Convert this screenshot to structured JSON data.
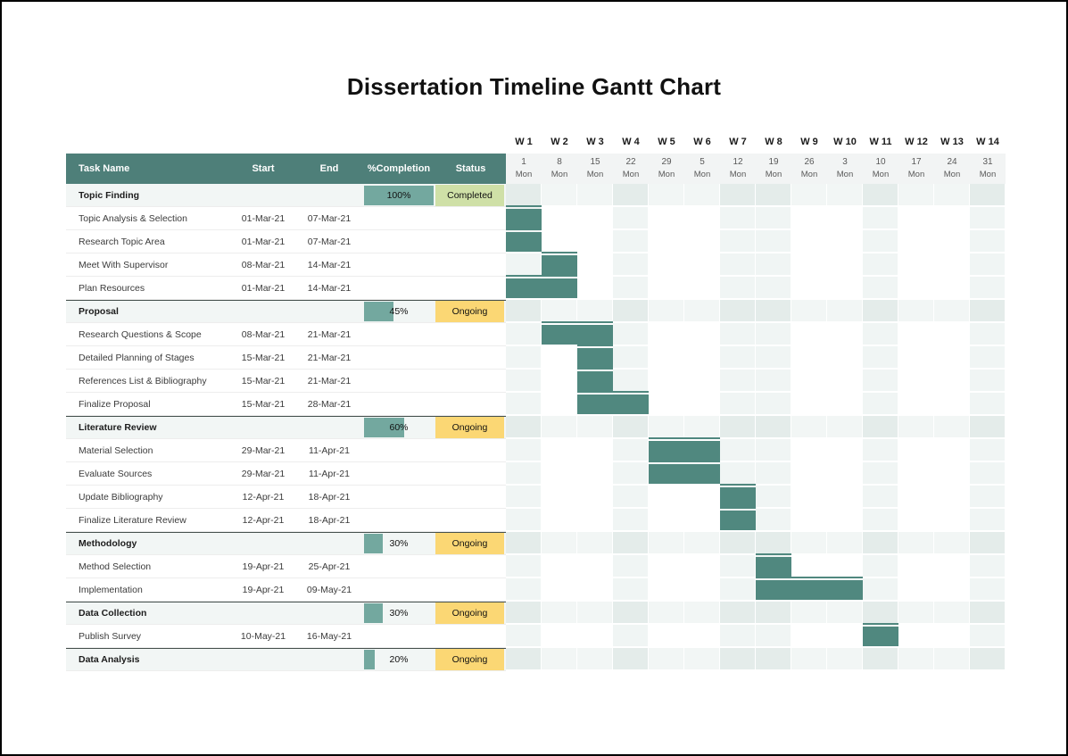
{
  "page_title": "Dissertation Timeline Gantt Chart",
  "colors": {
    "table_header_bg": "#4e7f79",
    "gantt_bar": "#50887f",
    "progress_fill": "#73a89f",
    "status": {
      "Completed": "#cfe0a7",
      "Ongoing": "#fbd774"
    },
    "week_shade": "rgba(79,135,127,0.085)",
    "group_row_bg": "rgba(79,135,127,0.075)",
    "date_band_bg": "#f2f4f4"
  },
  "table": {
    "headers": [
      "Task Name",
      "Start",
      "End",
      "%Completion",
      "Status"
    ]
  },
  "chart_data": {
    "type": "gantt",
    "title": "Dissertation Timeline Gantt Chart",
    "x_axis": {
      "unit": "week",
      "week_labels": [
        "W 1",
        "W 2",
        "W 3",
        "W 4",
        "W 5",
        "W 6",
        "W 7",
        "W 8",
        "W 9",
        "W 10",
        "W 11",
        "W 12",
        "W 13",
        "W 14"
      ],
      "week_start_dates": [
        "1",
        "8",
        "15",
        "22",
        "29",
        "5",
        "12",
        "19",
        "26",
        "3",
        "10",
        "17",
        "24",
        "31"
      ],
      "weekday": "Mon"
    },
    "shaded_weeks": [
      1,
      4,
      7,
      8,
      11,
      14
    ],
    "tasks": [
      {
        "type": "group",
        "name": "Topic Finding",
        "completion": 100,
        "status": "Completed"
      },
      {
        "type": "task",
        "name": "Topic Analysis & Selection",
        "start": "01-Mar-21",
        "end": "07-Mar-21",
        "week_from": 1,
        "week_to": 1
      },
      {
        "type": "task",
        "name": "Research Topic Area",
        "start": "01-Mar-21",
        "end": "07-Mar-21",
        "week_from": 1,
        "week_to": 1
      },
      {
        "type": "task",
        "name": "Meet With Supervisor",
        "start": "08-Mar-21",
        "end": "14-Mar-21",
        "week_from": 2,
        "week_to": 2
      },
      {
        "type": "task",
        "name": "Plan Resources",
        "start": "01-Mar-21",
        "end": "14-Mar-21",
        "week_from": 1,
        "week_to": 2
      },
      {
        "type": "group",
        "name": "Proposal",
        "completion": 45,
        "status": "Ongoing"
      },
      {
        "type": "task",
        "name": "Research Questions & Scope",
        "start": "08-Mar-21",
        "end": "21-Mar-21",
        "week_from": 2,
        "week_to": 3
      },
      {
        "type": "task",
        "name": "Detailed Planning of Stages",
        "start": "15-Mar-21",
        "end": "21-Mar-21",
        "week_from": 3,
        "week_to": 3
      },
      {
        "type": "task",
        "name": "References List & Bibliography",
        "start": "15-Mar-21",
        "end": "21-Mar-21",
        "week_from": 3,
        "week_to": 3
      },
      {
        "type": "task",
        "name": "Finalize Proposal",
        "start": "15-Mar-21",
        "end": "28-Mar-21",
        "week_from": 3,
        "week_to": 4
      },
      {
        "type": "group",
        "name": "Literature Review",
        "completion": 60,
        "status": "Ongoing"
      },
      {
        "type": "task",
        "name": "Material Selection",
        "start": "29-Mar-21",
        "end": "11-Apr-21",
        "week_from": 5,
        "week_to": 6
      },
      {
        "type": "task",
        "name": "Evaluate Sources",
        "start": "29-Mar-21",
        "end": "11-Apr-21",
        "week_from": 5,
        "week_to": 6
      },
      {
        "type": "task",
        "name": "Update Bibliography",
        "start": "12-Apr-21",
        "end": "18-Apr-21",
        "week_from": 7,
        "week_to": 7
      },
      {
        "type": "task",
        "name": "Finalize Literature Review",
        "start": "12-Apr-21",
        "end": "18-Apr-21",
        "week_from": 7,
        "week_to": 7
      },
      {
        "type": "group",
        "name": "Methodology",
        "completion": 30,
        "status": "Ongoing"
      },
      {
        "type": "task",
        "name": "Method Selection",
        "start": "19-Apr-21",
        "end": "25-Apr-21",
        "week_from": 8,
        "week_to": 8
      },
      {
        "type": "task",
        "name": "Implementation",
        "start": "19-Apr-21",
        "end": "09-May-21",
        "week_from": 8,
        "week_to": 10
      },
      {
        "type": "group",
        "name": "Data Collection",
        "completion": 30,
        "status": "Ongoing"
      },
      {
        "type": "task",
        "name": "Publish Survey",
        "start": "10-May-21",
        "end": "16-May-21",
        "week_from": 11,
        "week_to": 11
      },
      {
        "type": "group",
        "name": "Data Analysis",
        "completion": 20,
        "status": "Ongoing"
      }
    ]
  }
}
